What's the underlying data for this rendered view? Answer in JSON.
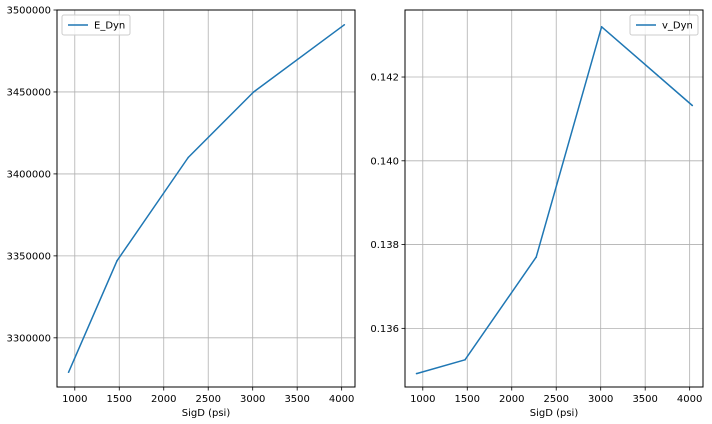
{
  "chart_data": [
    {
      "type": "line",
      "xlabel": "SigD (psi)",
      "ylabel": "",
      "xlim": [
        800,
        4150
      ],
      "ylim": [
        3270000,
        3500000
      ],
      "xticks": [
        1000,
        1500,
        2000,
        2500,
        3000,
        3500,
        4000
      ],
      "yticks": [
        3300000,
        3350000,
        3400000,
        3450000,
        3500000
      ],
      "grid": true,
      "legend": "top-left",
      "series": [
        {
          "name": "E_Dyn",
          "color": "#1f77b4",
          "x": [
            930,
            1475,
            2275,
            3010,
            4030
          ],
          "y": [
            3279000,
            3347000,
            3410000,
            3450000,
            3491000
          ]
        }
      ]
    },
    {
      "type": "line",
      "xlabel": "SigD (psi)",
      "ylabel": "",
      "xlim": [
        800,
        4150
      ],
      "ylim": [
        0.1346,
        0.1436
      ],
      "xticks": [
        1000,
        1500,
        2000,
        2500,
        3000,
        3500,
        4000
      ],
      "yticks": [
        0.136,
        0.138,
        0.14,
        0.142
      ],
      "ytick_decimals": 3,
      "grid": true,
      "legend": "top-right",
      "series": [
        {
          "name": "v_Dyn",
          "color": "#1f77b4",
          "x": [
            930,
            1475,
            2275,
            3010,
            4030
          ],
          "y": [
            0.13492,
            0.13525,
            0.1377,
            0.1432,
            0.14132
          ]
        }
      ]
    }
  ]
}
